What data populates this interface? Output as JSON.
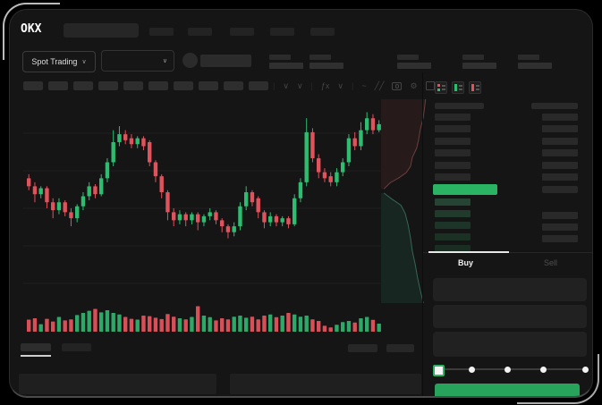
{
  "brand": {
    "logo_text": "OKX"
  },
  "market_bar": {
    "mode_selector": {
      "label": "Spot Trading",
      "chevron": "∨"
    },
    "pair_selector_chevron": "∨"
  },
  "chart_toolbar": {
    "icons": [
      {
        "name": "separator",
        "glyph": "|"
      },
      {
        "name": "interval-chevron-icon",
        "glyph": "∨"
      },
      {
        "name": "candle-style-chevron-icon",
        "glyph": "∨"
      },
      {
        "name": "separator",
        "glyph": "|"
      },
      {
        "name": "indicators-icon",
        "glyph": "ƒx"
      },
      {
        "name": "indicators-chevron-icon",
        "glyph": "∨"
      },
      {
        "name": "separator",
        "glyph": "|"
      },
      {
        "name": "line-tool-icon",
        "glyph": "~"
      },
      {
        "name": "draw-tool-icon",
        "glyph": "╱╱"
      },
      {
        "name": "camera-icon",
        "glyph": ""
      },
      {
        "name": "settings-gear-icon",
        "glyph": "⚙"
      },
      {
        "name": "fullscreen-icon",
        "glyph": ""
      }
    ]
  },
  "order_book": {
    "view_modes": [
      "combined",
      "bids-only",
      "asks-only"
    ],
    "ask_row_count": 6,
    "bid_row_count": 5,
    "bid_rows_with_size_bar": [
      2,
      3,
      4
    ]
  },
  "trade_panel": {
    "buy_tab": "Buy",
    "sell_tab": "Sell",
    "input_row_count": 3,
    "slider_stops_percent": [
      0,
      25,
      50,
      75,
      100
    ],
    "slider_active_stop_percent": 0
  },
  "colors": {
    "up_green": "#2ebd70",
    "down_red": "#e0525c",
    "volume_up": "#2ea868",
    "volume_down": "#d94f58",
    "buy_button_green": "#27a35b",
    "orderbook_price_bar_green": "#2bb364",
    "active_tab_underline": "#e8e8e8",
    "background": "#151515"
  },
  "chart_data": {
    "type": "candlestick",
    "title": "",
    "xlabel": "",
    "ylabel": "",
    "axis_labels_visible": false,
    "grid": "horizontal-faint",
    "ylim": [
      30,
      97
    ],
    "note": "OHLC and volume estimated from pixels; chart has no visible numeric labels",
    "candles": [
      [
        62,
        64,
        56,
        58
      ],
      [
        58,
        60,
        50,
        54
      ],
      [
        54,
        58,
        52,
        57
      ],
      [
        57,
        58,
        47,
        50
      ],
      [
        50,
        52,
        42,
        46
      ],
      [
        46,
        52,
        44,
        50
      ],
      [
        50,
        51,
        43,
        45
      ],
      [
        45,
        47,
        38,
        42
      ],
      [
        42,
        49,
        40,
        48
      ],
      [
        48,
        55,
        46,
        53
      ],
      [
        53,
        60,
        51,
        58
      ],
      [
        58,
        59,
        52,
        54
      ],
      [
        54,
        64,
        53,
        62
      ],
      [
        62,
        72,
        60,
        70
      ],
      [
        70,
        86,
        68,
        80
      ],
      [
        80,
        88,
        78,
        84
      ],
      [
        84,
        86,
        79,
        81
      ],
      [
        82,
        84,
        77,
        79
      ],
      [
        79,
        83,
        77,
        82
      ],
      [
        82,
        83,
        76,
        78
      ],
      [
        80,
        81,
        68,
        70
      ],
      [
        70,
        71,
        60,
        63
      ],
      [
        63,
        64,
        52,
        55
      ],
      [
        55,
        56,
        41,
        45
      ],
      [
        45,
        47,
        38,
        41
      ],
      [
        41,
        46,
        39,
        44
      ],
      [
        44,
        45,
        38,
        41
      ],
      [
        41,
        45,
        39,
        44
      ],
      [
        44,
        45,
        36,
        40
      ],
      [
        40,
        44,
        38,
        43
      ],
      [
        43,
        47,
        41,
        45
      ],
      [
        45,
        46,
        39,
        41
      ],
      [
        41,
        42,
        35,
        38
      ],
      [
        38,
        39,
        32,
        35
      ],
      [
        35,
        40,
        33,
        38
      ],
      [
        38,
        50,
        36,
        48
      ],
      [
        48,
        58,
        46,
        55
      ],
      [
        55,
        56,
        48,
        50
      ],
      [
        52,
        53,
        42,
        45
      ],
      [
        45,
        46,
        37,
        40
      ],
      [
        40,
        45,
        38,
        43
      ],
      [
        43,
        44,
        38,
        40
      ],
      [
        40,
        43,
        38,
        42
      ],
      [
        42,
        43,
        37,
        39
      ],
      [
        39,
        54,
        38,
        52
      ],
      [
        52,
        62,
        50,
        60
      ],
      [
        60,
        92,
        58,
        85
      ],
      [
        85,
        87,
        70,
        72
      ],
      [
        72,
        74,
        62,
        65
      ],
      [
        65,
        67,
        60,
        62
      ],
      [
        63,
        65,
        58,
        60
      ],
      [
        60,
        67,
        58,
        65
      ],
      [
        65,
        72,
        63,
        70
      ],
      [
        70,
        84,
        68,
        82
      ],
      [
        82,
        85,
        76,
        78
      ],
      [
        78,
        90,
        76,
        86
      ],
      [
        86,
        95,
        84,
        92
      ],
      [
        92,
        94,
        84,
        86
      ],
      [
        86,
        91,
        85,
        89
      ]
    ],
    "volumes": [
      45,
      50,
      28,
      48,
      38,
      55,
      42,
      46,
      62,
      70,
      78,
      85,
      72,
      80,
      70,
      64,
      55,
      48,
      45,
      60,
      58,
      52,
      47,
      66,
      56,
      50,
      46,
      55,
      95,
      60,
      54,
      42,
      50,
      46,
      56,
      60,
      52,
      56,
      46,
      60,
      64,
      54,
      60,
      70,
      64,
      56,
      60,
      46,
      40,
      22,
      16,
      26,
      36,
      40,
      34,
      50,
      55,
      44,
      30
    ],
    "depth_preview": {
      "asks_curve": [
        [
          0.06,
          0.44
        ],
        [
          0.19,
          0.41
        ],
        [
          0.38,
          0.385
        ],
        [
          0.53,
          0.36
        ],
        [
          0.62,
          0.33
        ],
        [
          0.66,
          0.285
        ],
        [
          0.75,
          0.24
        ],
        [
          0.79,
          0.2
        ],
        [
          0.83,
          0.145
        ],
        [
          0.89,
          0.09
        ],
        [
          0.92,
          0.035
        ],
        [
          0.94,
          0
        ]
      ],
      "bids_curve": [
        [
          0.06,
          0.46
        ],
        [
          0.23,
          0.49
        ],
        [
          0.42,
          0.52
        ],
        [
          0.51,
          0.56
        ],
        [
          0.57,
          0.615
        ],
        [
          0.62,
          0.68
        ],
        [
          0.66,
          0.745
        ],
        [
          0.72,
          0.81
        ],
        [
          0.77,
          0.875
        ],
        [
          0.83,
          0.94
        ],
        [
          0.89,
          1
        ]
      ]
    }
  }
}
